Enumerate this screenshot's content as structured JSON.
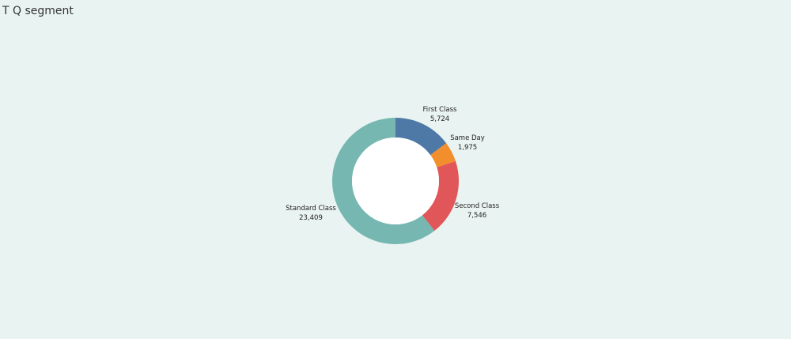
{
  "title": "T Q segment",
  "chart_data": {
    "type": "pie",
    "style": "donut",
    "title": "T Q segment",
    "categories": [
      "First Class",
      "Same Day",
      "Second Class",
      "Standard Class"
    ],
    "values": [
      5724,
      1975,
      7546,
      23409
    ],
    "value_labels": [
      "5,724",
      "1,975",
      "7,546",
      "23,409"
    ],
    "colors": [
      "#4e79a7",
      "#f28e2b",
      "#e15759",
      "#76b7b2"
    ],
    "legend": "none"
  }
}
